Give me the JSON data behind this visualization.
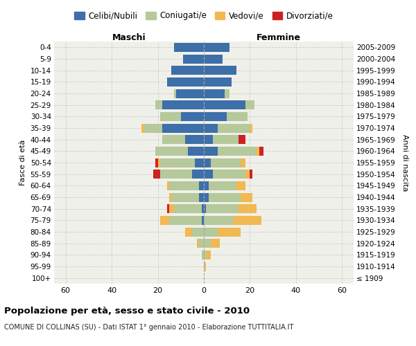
{
  "age_groups": [
    "100+",
    "95-99",
    "90-94",
    "85-89",
    "80-84",
    "75-79",
    "70-74",
    "65-69",
    "60-64",
    "55-59",
    "50-54",
    "45-49",
    "40-44",
    "35-39",
    "30-34",
    "25-29",
    "20-24",
    "15-19",
    "10-14",
    "5-9",
    "0-4"
  ],
  "birth_years": [
    "≤ 1909",
    "1910-1914",
    "1915-1919",
    "1920-1924",
    "1925-1929",
    "1930-1934",
    "1935-1939",
    "1940-1944",
    "1945-1949",
    "1950-1954",
    "1955-1959",
    "1960-1964",
    "1965-1969",
    "1970-1974",
    "1975-1979",
    "1980-1984",
    "1985-1989",
    "1990-1994",
    "1995-1999",
    "2000-2004",
    "2005-2009"
  ],
  "male": {
    "celibi": [
      0,
      0,
      0,
      0,
      0,
      1,
      1,
      2,
      2,
      5,
      4,
      7,
      8,
      18,
      10,
      18,
      12,
      16,
      14,
      9,
      13
    ],
    "coniugati": [
      0,
      0,
      1,
      2,
      5,
      14,
      12,
      12,
      13,
      14,
      15,
      14,
      10,
      8,
      9,
      3,
      1,
      0,
      0,
      0,
      0
    ],
    "vedovi": [
      0,
      0,
      0,
      1,
      3,
      4,
      2,
      1,
      1,
      0,
      1,
      0,
      0,
      1,
      0,
      0,
      0,
      0,
      0,
      0,
      0
    ],
    "divorziati": [
      0,
      0,
      0,
      0,
      0,
      0,
      1,
      0,
      0,
      3,
      1,
      0,
      0,
      0,
      0,
      0,
      0,
      0,
      0,
      0,
      0
    ]
  },
  "female": {
    "nubili": [
      0,
      0,
      0,
      0,
      0,
      0,
      1,
      2,
      2,
      4,
      3,
      6,
      4,
      6,
      10,
      18,
      9,
      12,
      14,
      8,
      11
    ],
    "coniugate": [
      0,
      0,
      1,
      3,
      6,
      13,
      14,
      14,
      12,
      14,
      13,
      17,
      11,
      14,
      9,
      4,
      2,
      0,
      0,
      0,
      0
    ],
    "vedove": [
      0,
      1,
      2,
      4,
      10,
      12,
      8,
      5,
      4,
      2,
      2,
      1,
      0,
      1,
      0,
      0,
      0,
      0,
      0,
      0,
      0
    ],
    "divorziate": [
      0,
      0,
      0,
      0,
      0,
      0,
      0,
      0,
      0,
      1,
      0,
      2,
      3,
      0,
      0,
      0,
      0,
      0,
      0,
      0,
      0
    ]
  },
  "colors": {
    "celibi": "#3d6fa8",
    "coniugati": "#b5c99a",
    "vedovi": "#f0b952",
    "divorziati": "#cc2222"
  },
  "xlim": 65,
  "title": "Popolazione per età, sesso e stato civile - 2010",
  "subtitle": "COMUNE DI COLLINAS (SU) - Dati ISTAT 1° gennaio 2010 - Elaborazione TUTTITALIA.IT",
  "ylabel_left": "Fasce di età",
  "ylabel_right": "Anni di nascita",
  "xlabel_maschi": "Maschi",
  "xlabel_femmine": "Femmine",
  "legend_labels": [
    "Celibi/Nubili",
    "Coniugati/e",
    "Vedovi/e",
    "Divorziati/e"
  ],
  "grid_color": "#cccccc",
  "bg_color": "#f0f0ea"
}
